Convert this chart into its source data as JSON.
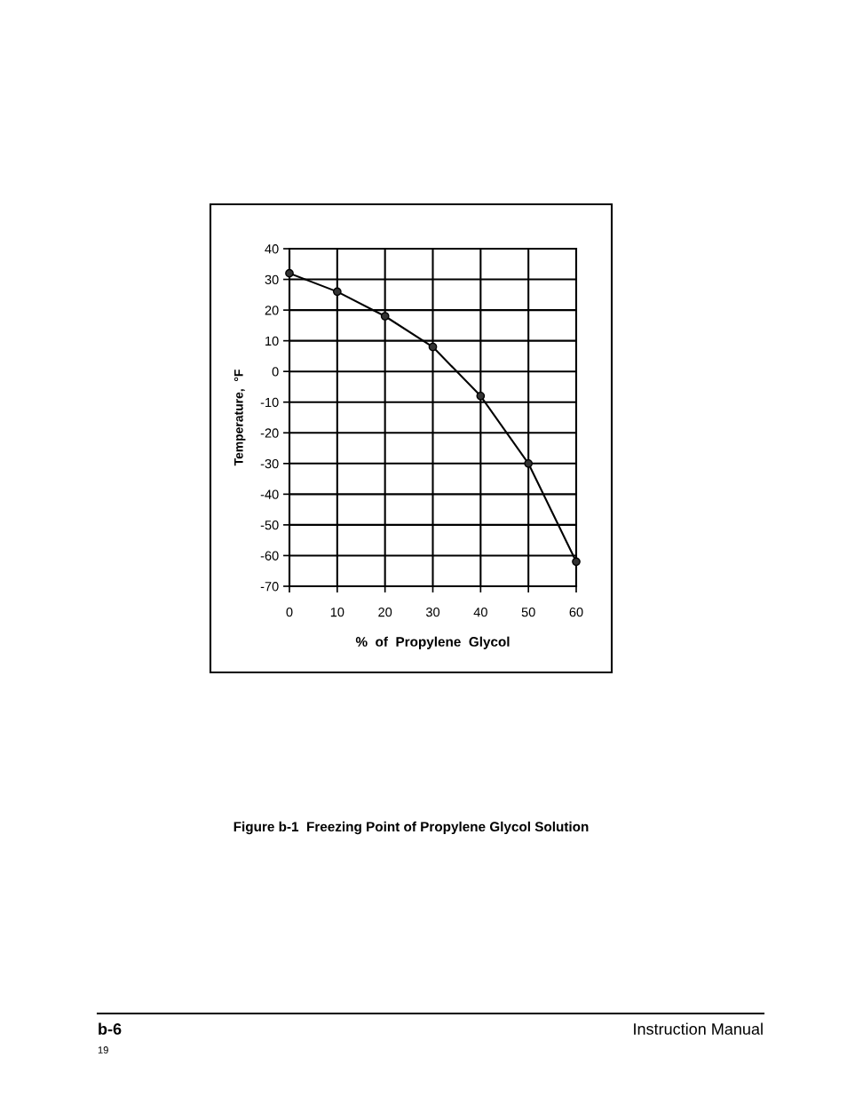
{
  "chart_data": {
    "type": "line",
    "xlabel": "%  of  Propylene  Glycol",
    "ylabel": "Temperature,  °F",
    "x": [
      0,
      10,
      20,
      30,
      40,
      50,
      60
    ],
    "series": [
      {
        "color": "#000000",
        "values": [
          32,
          26,
          18,
          8,
          -8,
          -30,
          -62
        ]
      }
    ],
    "marker": "circle",
    "line_style": "solid",
    "xlim": [
      0,
      60
    ],
    "xticks": [
      0,
      10,
      20,
      30,
      40,
      50,
      60
    ],
    "ylim": [
      -70,
      40
    ],
    "yticks": [
      -70,
      -60,
      -50,
      -40,
      -30,
      -20,
      -10,
      0,
      10,
      20,
      30,
      40
    ],
    "grid": true,
    "legend": false,
    "annotations": [
      "Figure b-1  Freezing Point of Propylene Glycol Solution",
      "b-6",
      "Instruction Manual",
      "19"
    ]
  }
}
